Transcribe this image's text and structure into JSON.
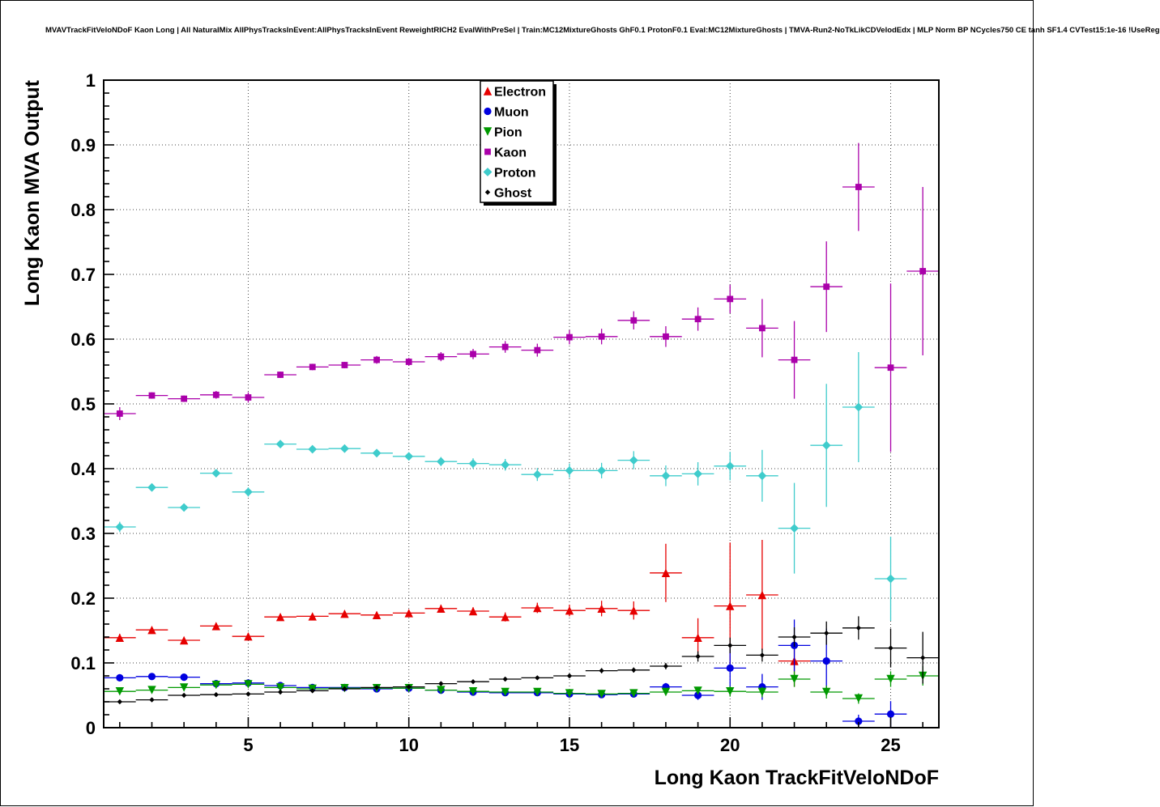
{
  "title": "MVAVTrackFitVeloNDoF Kaon Long | All NaturalMix AllPhysTracksInEvent:AllPhysTracksInEvent ReweightRICH2 EvalWithPreSel | Train:MC12MixtureGhosts GhF0.1 ProtonF0.1 Eval:MC12MixtureGhosts | TMVA-Run2-NoTkLikCDVelodEdx | MLP Norm BP NCycles750 CE tanh SF1.4 CVTest15:1e-16 !UseReg",
  "chart_data": {
    "type": "scatter",
    "title": "",
    "xlabel": "Long Kaon TrackFitVeloNDoF",
    "ylabel": "Long Kaon MVA Output",
    "xlim": [
      0.5,
      26.5
    ],
    "ylim": [
      0,
      1
    ],
    "xticks": [
      5,
      10,
      15,
      20,
      25
    ],
    "xtick_labels": [
      "5",
      "10",
      "15",
      "20",
      "25"
    ],
    "yticks": [
      0,
      0.1,
      0.2,
      0.3,
      0.4,
      0.5,
      0.6,
      0.7,
      0.8,
      0.9,
      1
    ],
    "ytick_labels": [
      "0",
      "0.1",
      "0.2",
      "0.3",
      "0.4",
      "0.5",
      "0.6",
      "0.7",
      "0.8",
      "0.9",
      "1"
    ],
    "grid": "dotted",
    "legend_position": "top-center",
    "series": [
      {
        "name": "Electron",
        "color": "#e60000",
        "marker": "triangle-up",
        "xerr": 0.5,
        "x": [
          1,
          2,
          3,
          4,
          5,
          6,
          7,
          8,
          9,
          10,
          11,
          12,
          13,
          14,
          15,
          16,
          17,
          18,
          19,
          20,
          21,
          22
        ],
        "y": [
          0.139,
          0.151,
          0.135,
          0.157,
          0.141,
          0.171,
          0.172,
          0.176,
          0.174,
          0.177,
          0.184,
          0.18,
          0.171,
          0.185,
          0.181,
          0.184,
          0.181,
          0.239,
          0.139,
          0.188,
          0.205,
          0.103
        ],
        "yerr": [
          0.006,
          0.004,
          0.004,
          0.005,
          0.005,
          0.004,
          0.004,
          0.004,
          0.005,
          0.005,
          0.006,
          0.006,
          0.007,
          0.008,
          0.009,
          0.012,
          0.014,
          0.045,
          0.03,
          0.098,
          0.085,
          0.04
        ]
      },
      {
        "name": "Muon",
        "color": "#0000e0",
        "marker": "circle",
        "xerr": 0.5,
        "x": [
          1,
          2,
          3,
          4,
          5,
          6,
          7,
          8,
          9,
          10,
          11,
          12,
          13,
          14,
          15,
          16,
          17,
          18,
          19,
          20,
          21,
          22,
          23,
          24,
          25
        ],
        "y": [
          0.077,
          0.079,
          0.078,
          0.068,
          0.069,
          0.065,
          0.062,
          0.062,
          0.06,
          0.061,
          0.058,
          0.055,
          0.054,
          0.054,
          0.052,
          0.051,
          0.052,
          0.063,
          0.05,
          0.092,
          0.063,
          0.127,
          0.103,
          0.01,
          0.021
        ],
        "yerr": [
          0.003,
          0.002,
          0.002,
          0.002,
          0.002,
          0.002,
          0.002,
          0.002,
          0.002,
          0.002,
          0.002,
          0.002,
          0.002,
          0.003,
          0.003,
          0.004,
          0.004,
          0.006,
          0.007,
          0.03,
          0.02,
          0.04,
          0.05,
          0.01,
          0.02
        ]
      },
      {
        "name": "Pion",
        "color": "#009900",
        "marker": "triangle-down",
        "xerr": 0.5,
        "x": [
          1,
          2,
          3,
          4,
          5,
          6,
          7,
          8,
          9,
          10,
          11,
          12,
          13,
          14,
          15,
          16,
          17,
          18,
          19,
          20,
          21,
          22,
          23,
          24,
          25,
          26
        ],
        "y": [
          0.056,
          0.058,
          0.062,
          0.066,
          0.067,
          0.062,
          0.06,
          0.061,
          0.061,
          0.061,
          0.058,
          0.056,
          0.055,
          0.055,
          0.053,
          0.052,
          0.053,
          0.055,
          0.057,
          0.056,
          0.055,
          0.075,
          0.055,
          0.045,
          0.075,
          0.08
        ],
        "yerr": [
          0.001,
          0.001,
          0.001,
          0.001,
          0.001,
          0.001,
          0.001,
          0.001,
          0.001,
          0.001,
          0.001,
          0.001,
          0.001,
          0.002,
          0.002,
          0.002,
          0.002,
          0.003,
          0.004,
          0.008,
          0.008,
          0.012,
          0.01,
          0.008,
          0.012,
          0.015
        ]
      },
      {
        "name": "Kaon",
        "color": "#aa00aa",
        "marker": "square",
        "xerr": 0.5,
        "x": [
          1,
          2,
          3,
          4,
          5,
          6,
          7,
          8,
          9,
          10,
          11,
          12,
          13,
          14,
          15,
          16,
          17,
          18,
          19,
          20,
          21,
          22,
          23,
          24,
          25,
          26
        ],
        "y": [
          0.485,
          0.513,
          0.508,
          0.514,
          0.51,
          0.545,
          0.557,
          0.56,
          0.568,
          0.565,
          0.573,
          0.577,
          0.588,
          0.583,
          0.603,
          0.604,
          0.629,
          0.604,
          0.631,
          0.662,
          0.617,
          0.568,
          0.681,
          0.835,
          0.556,
          0.705
        ],
        "yerr": [
          0.01,
          0.005,
          0.005,
          0.006,
          0.008,
          0.005,
          0.005,
          0.005,
          0.006,
          0.006,
          0.007,
          0.008,
          0.009,
          0.01,
          0.011,
          0.012,
          0.014,
          0.016,
          0.018,
          0.022,
          0.045,
          0.06,
          0.07,
          0.068,
          0.13,
          0.13
        ]
      },
      {
        "name": "Proton",
        "color": "#3fcccc",
        "marker": "diamond",
        "xerr": 0.5,
        "x": [
          1,
          2,
          3,
          4,
          5,
          6,
          7,
          8,
          9,
          10,
          11,
          12,
          13,
          14,
          15,
          16,
          17,
          18,
          19,
          20,
          21,
          22,
          23,
          24,
          25
        ],
        "y": [
          0.31,
          0.371,
          0.34,
          0.393,
          0.364,
          0.438,
          0.43,
          0.431,
          0.424,
          0.419,
          0.411,
          0.408,
          0.406,
          0.391,
          0.397,
          0.397,
          0.413,
          0.389,
          0.392,
          0.404,
          0.389,
          0.308,
          0.436,
          0.495,
          0.23
        ],
        "yerr": [
          0.008,
          0.005,
          0.005,
          0.006,
          0.007,
          0.005,
          0.005,
          0.005,
          0.006,
          0.006,
          0.007,
          0.008,
          0.009,
          0.01,
          0.011,
          0.012,
          0.014,
          0.016,
          0.018,
          0.022,
          0.04,
          0.07,
          0.095,
          0.085,
          0.065
        ]
      },
      {
        "name": "Ghost",
        "color": "#000000",
        "marker": "small-diamond",
        "xerr": 0.5,
        "x": [
          1,
          2,
          3,
          4,
          5,
          6,
          7,
          8,
          9,
          10,
          11,
          12,
          13,
          14,
          15,
          16,
          17,
          18,
          19,
          20,
          21,
          22,
          23,
          24,
          25,
          26
        ],
        "y": [
          0.04,
          0.043,
          0.05,
          0.051,
          0.052,
          0.055,
          0.057,
          0.06,
          0.062,
          0.063,
          0.068,
          0.071,
          0.075,
          0.077,
          0.08,
          0.088,
          0.089,
          0.095,
          0.11,
          0.127,
          0.112,
          0.14,
          0.146,
          0.154,
          0.123,
          0.108
        ],
        "yerr": [
          0.002,
          0.002,
          0.002,
          0.002,
          0.002,
          0.002,
          0.002,
          0.002,
          0.002,
          0.002,
          0.002,
          0.002,
          0.003,
          0.003,
          0.003,
          0.004,
          0.004,
          0.005,
          0.008,
          0.012,
          0.01,
          0.015,
          0.018,
          0.018,
          0.03,
          0.04
        ]
      }
    ]
  }
}
